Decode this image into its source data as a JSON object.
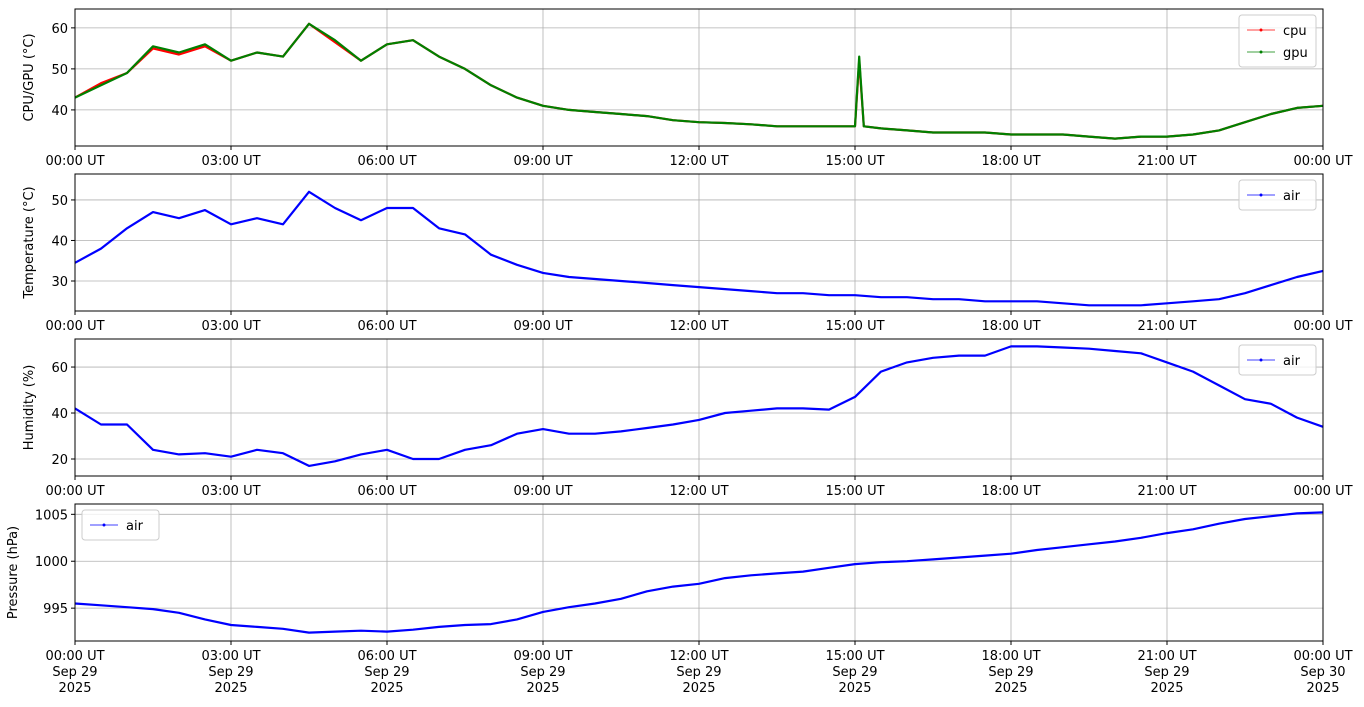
{
  "chart_data": [
    {
      "type": "line",
      "ylabel": "CPU/GPU (°C)",
      "x": [
        0,
        0.5,
        1,
        1.5,
        2,
        2.5,
        3,
        3.5,
        4,
        4.5,
        5,
        5.5,
        6,
        6.5,
        7,
        7.5,
        8,
        8.5,
        9,
        9.5,
        10,
        10.5,
        11,
        11.5,
        12,
        12.5,
        13,
        13.5,
        14,
        14.5,
        15,
        15.08,
        15.17,
        15.5,
        16,
        16.5,
        17,
        17.5,
        18,
        18.5,
        19,
        19.5,
        20,
        20.5,
        21,
        21.5,
        22,
        22.5,
        23,
        23.5,
        24
      ],
      "series": [
        {
          "name": "cpu",
          "color": "#ff0000",
          "values": [
            43,
            46.5,
            49,
            55,
            53.5,
            55.5,
            52,
            54,
            53,
            61,
            56.5,
            52,
            56,
            57,
            53,
            50,
            46,
            43,
            41,
            40,
            39.5,
            39,
            38.5,
            37.5,
            37,
            36.8,
            36.5,
            36,
            36,
            36,
            36,
            52,
            36,
            35.5,
            35,
            34.5,
            34.5,
            34.5,
            34,
            34,
            34,
            33.5,
            33,
            33.5,
            33.5,
            34,
            35,
            37,
            39,
            40.5,
            41
          ]
        },
        {
          "name": "gpu",
          "color": "#008000",
          "values": [
            43,
            46,
            49,
            55.5,
            54,
            56,
            52,
            54,
            53,
            61,
            57,
            52,
            56,
            57,
            53,
            50,
            46,
            43,
            41,
            40,
            39.5,
            39,
            38.5,
            37.5,
            37,
            36.8,
            36.5,
            36,
            36,
            36,
            36,
            53,
            36,
            35.5,
            35,
            34.5,
            34.5,
            34.5,
            34,
            34,
            34,
            33.5,
            33,
            33.5,
            33.5,
            34,
            35,
            37,
            39,
            40.5,
            41
          ]
        }
      ],
      "xlim": [
        0,
        24
      ],
      "xticks": [
        {
          "value": 0,
          "label": "00:00 UT"
        },
        {
          "value": 3,
          "label": "03:00 UT"
        },
        {
          "value": 6,
          "label": "06:00 UT"
        },
        {
          "value": 9,
          "label": "09:00 UT"
        },
        {
          "value": 12,
          "label": "12:00 UT"
        },
        {
          "value": 15,
          "label": "15:00 UT"
        },
        {
          "value": 18,
          "label": "18:00 UT"
        },
        {
          "value": 21,
          "label": "21:00 UT"
        },
        {
          "value": 24,
          "label": "00:00 UT"
        }
      ],
      "ylim": [
        31.2,
        64.6
      ],
      "yticks": [
        40,
        50,
        60
      ],
      "grid": true,
      "legend": "upper right"
    },
    {
      "type": "line",
      "ylabel": "Temperature (°C)",
      "x": [
        0,
        0.5,
        1,
        1.5,
        2,
        2.5,
        3,
        3.5,
        4,
        4.5,
        5,
        5.5,
        6,
        6.5,
        7,
        7.5,
        8,
        8.5,
        9,
        9.5,
        10,
        10.5,
        11,
        11.5,
        12,
        12.5,
        13,
        13.5,
        14,
        14.5,
        15,
        15.5,
        16,
        16.5,
        17,
        17.5,
        18,
        18.5,
        19,
        19.5,
        20,
        20.5,
        21,
        21.5,
        22,
        22.5,
        23,
        23.5,
        24
      ],
      "series": [
        {
          "name": "air",
          "color": "#0000ff",
          "values": [
            34.5,
            38,
            43,
            47,
            45.5,
            47.5,
            44,
            45.5,
            44,
            52,
            48,
            45,
            48,
            48,
            43,
            41.5,
            36.5,
            34,
            32,
            31,
            30.5,
            30,
            29.5,
            29,
            28.5,
            28,
            27.5,
            27,
            27,
            26.5,
            26.5,
            26,
            26,
            25.5,
            25.5,
            25,
            25,
            25,
            24.5,
            24,
            24,
            24,
            24.5,
            25,
            25.5,
            27,
            29,
            31,
            32.5
          ]
        }
      ],
      "xlim": [
        0,
        24
      ],
      "xticks": [
        {
          "value": 0,
          "label": "00:00 UT"
        },
        {
          "value": 3,
          "label": "03:00 UT"
        },
        {
          "value": 6,
          "label": "06:00 UT"
        },
        {
          "value": 9,
          "label": "09:00 UT"
        },
        {
          "value": 12,
          "label": "12:00 UT"
        },
        {
          "value": 15,
          "label": "15:00 UT"
        },
        {
          "value": 18,
          "label": "18:00 UT"
        },
        {
          "value": 21,
          "label": "21:00 UT"
        },
        {
          "value": 24,
          "label": "00:00 UT"
        }
      ],
      "ylim": [
        22.6,
        56.4
      ],
      "yticks": [
        30,
        40,
        50
      ],
      "grid": true,
      "legend": "upper right"
    },
    {
      "type": "line",
      "ylabel": "Humidity (%)",
      "x": [
        0,
        0.5,
        1,
        1.5,
        2,
        2.5,
        3,
        3.5,
        4,
        4.5,
        5,
        5.5,
        6,
        6.5,
        7,
        7.5,
        8,
        8.5,
        9,
        9.5,
        10,
        10.5,
        11,
        11.5,
        12,
        12.5,
        13,
        13.5,
        14,
        14.5,
        15,
        15.5,
        16,
        16.5,
        17,
        17.5,
        18,
        18.5,
        19,
        19.5,
        20,
        20.5,
        21,
        21.5,
        22,
        22.5,
        23,
        23.5,
        24
      ],
      "series": [
        {
          "name": "air",
          "color": "#0000ff",
          "values": [
            42,
            35,
            35,
            24,
            22,
            22.5,
            21,
            24,
            22.5,
            17,
            19,
            22,
            24,
            20,
            20,
            24,
            26,
            31,
            33,
            31,
            31,
            32,
            33.5,
            35,
            37,
            40,
            41,
            42,
            42,
            41.5,
            47,
            58,
            62,
            64,
            65,
            65,
            69,
            69,
            68.5,
            68,
            67,
            66,
            62,
            58,
            52,
            46,
            44,
            38,
            34
          ]
        }
      ],
      "xlim": [
        0,
        24
      ],
      "xticks": [
        {
          "value": 0,
          "label": "00:00 UT"
        },
        {
          "value": 3,
          "label": "03:00 UT"
        },
        {
          "value": 6,
          "label": "06:00 UT"
        },
        {
          "value": 9,
          "label": "09:00 UT"
        },
        {
          "value": 12,
          "label": "12:00 UT"
        },
        {
          "value": 15,
          "label": "15:00 UT"
        },
        {
          "value": 18,
          "label": "18:00 UT"
        },
        {
          "value": 21,
          "label": "21:00 UT"
        },
        {
          "value": 24,
          "label": "00:00 UT"
        }
      ],
      "ylim": [
        12.6,
        72.2
      ],
      "yticks": [
        20,
        40,
        60
      ],
      "grid": true,
      "legend": "upper right"
    },
    {
      "type": "line",
      "ylabel": "Pressure (hPa)",
      "x": [
        0,
        0.5,
        1,
        1.5,
        2,
        2.5,
        3,
        3.5,
        4,
        4.5,
        5,
        5.5,
        6,
        6.5,
        7,
        7.5,
        8,
        8.5,
        9,
        9.5,
        10,
        10.5,
        11,
        11.5,
        12,
        12.5,
        13,
        13.5,
        14,
        14.5,
        15,
        15.5,
        16,
        16.5,
        17,
        17.5,
        18,
        18.5,
        19,
        19.5,
        20,
        20.5,
        21,
        21.5,
        22,
        22.5,
        23,
        23.5,
        24
      ],
      "series": [
        {
          "name": "air",
          "color": "#0000ff",
          "values": [
            995.5,
            995.3,
            995.1,
            994.9,
            994.5,
            993.8,
            993.2,
            993,
            992.8,
            992.4,
            992.5,
            992.6,
            992.5,
            992.7,
            993,
            993.2,
            993.3,
            993.8,
            994.6,
            995.1,
            995.5,
            996,
            996.8,
            997.3,
            997.6,
            998.2,
            998.5,
            998.7,
            998.9,
            999.3,
            999.7,
            999.9,
            1000,
            1000.2,
            1000.4,
            1000.6,
            1000.8,
            1001.2,
            1001.5,
            1001.8,
            1002.1,
            1002.5,
            1003,
            1003.4,
            1004,
            1004.5,
            1004.8,
            1005.1,
            1005.2
          ]
        }
      ],
      "xlim": [
        0,
        24
      ],
      "xticks": [
        {
          "value": 0,
          "label": "00:00 UT\nSep 29\n2025"
        },
        {
          "value": 3,
          "label": "03:00 UT\nSep 29\n2025"
        },
        {
          "value": 6,
          "label": "06:00 UT\nSep 29\n2025"
        },
        {
          "value": 9,
          "label": "09:00 UT\nSep 29\n2025"
        },
        {
          "value": 12,
          "label": "12:00 UT\nSep 29\n2025"
        },
        {
          "value": 15,
          "label": "15:00 UT\nSep 29\n2025"
        },
        {
          "value": 18,
          "label": "18:00 UT\nSep 29\n2025"
        },
        {
          "value": 21,
          "label": "21:00 UT\nSep 29\n2025"
        },
        {
          "value": 24,
          "label": "00:00 UT\nSep 30\n2025"
        }
      ],
      "ylim": [
        991.5,
        1006.1
      ],
      "yticks": [
        995,
        1000,
        1005
      ],
      "grid": true,
      "legend": "upper left"
    }
  ]
}
